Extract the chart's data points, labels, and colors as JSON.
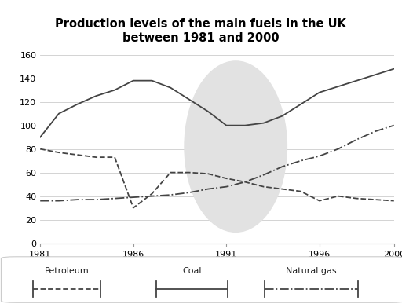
{
  "title": "Production levels of the main fuels in the UK\nbetween 1981 and 2000",
  "years": [
    1981,
    1982,
    1983,
    1984,
    1985,
    1986,
    1987,
    1988,
    1989,
    1990,
    1991,
    1992,
    1993,
    1994,
    1995,
    1996,
    1997,
    1998,
    1999,
    2000
  ],
  "petroleum": [
    80,
    77,
    75,
    73,
    73,
    30,
    42,
    60,
    60,
    59,
    55,
    52,
    48,
    46,
    44,
    36,
    40,
    38,
    37,
    36
  ],
  "coal": [
    90,
    110,
    118,
    125,
    130,
    138,
    138,
    132,
    122,
    112,
    100,
    100,
    102,
    108,
    118,
    128,
    133,
    138,
    143,
    148
  ],
  "natural_gas": [
    36,
    36,
    37,
    37,
    38,
    39,
    40,
    41,
    43,
    46,
    48,
    52,
    58,
    65,
    70,
    74,
    80,
    88,
    95,
    100
  ],
  "ylim": [
    0,
    160
  ],
  "yticks": [
    0,
    20,
    40,
    60,
    80,
    100,
    120,
    140,
    160
  ],
  "xticks": [
    1981,
    1986,
    1991,
    1996,
    2000
  ],
  "bg_color": "#ffffff",
  "watermark_color": "#e2e2e2",
  "line_color": "#444444",
  "legend_items": [
    {
      "label": "Petroleum",
      "linestyle": "--"
    },
    {
      "label": "Coal",
      "linestyle": "-"
    },
    {
      "label": "Natural gas",
      "linestyle": "-."
    }
  ]
}
